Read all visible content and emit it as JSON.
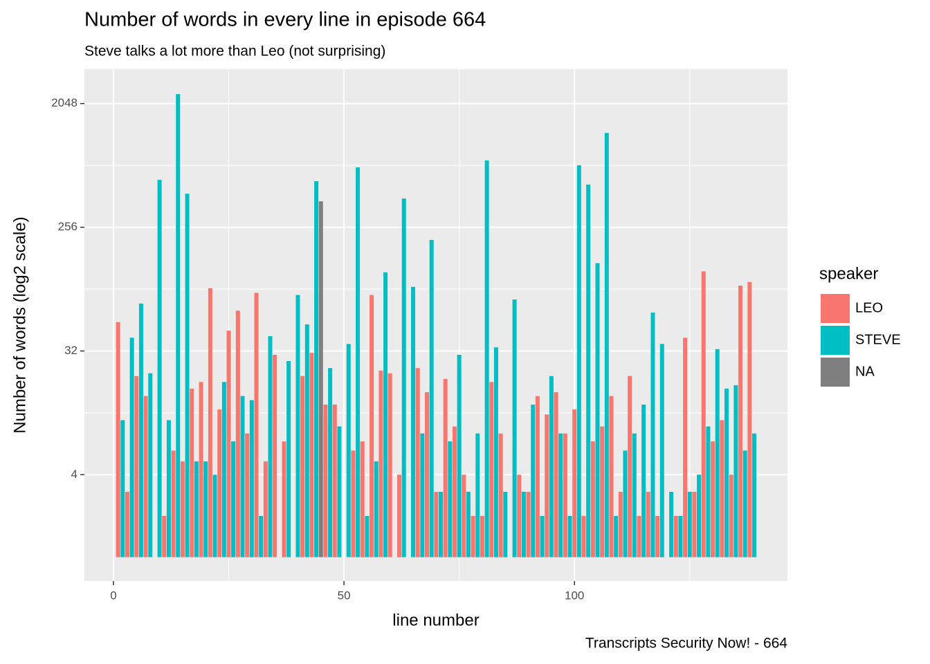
{
  "chart_data": {
    "type": "bar",
    "title": "Number of words in every line in episode 664",
    "subtitle": "Steve talks a lot more than Leo (not surprising)",
    "x_label": "line number",
    "y_label": "Number of words (log2 scale)",
    "caption": "Transcripts Security Now! - 664",
    "legend_title": "speaker",
    "legend_position": "right",
    "log_base": 2,
    "grid": true,
    "xlim": [
      -6.3,
      146.2
    ],
    "xticks": [
      0,
      50,
      100
    ],
    "ylim": [
      0.67,
      3650
    ],
    "yticks": [
      4,
      32,
      256,
      2048
    ],
    "series": [
      {
        "name": "LEO",
        "color": "#f8766d",
        "x": [
          1,
          3,
          5,
          7,
          11,
          13,
          15,
          17,
          19,
          21,
          23,
          25,
          27,
          29,
          31,
          33,
          35,
          37,
          41,
          43,
          46,
          48,
          52,
          54,
          56,
          58,
          60,
          62,
          66,
          68,
          70,
          72,
          74,
          76,
          78,
          80,
          82,
          84,
          88,
          90,
          92,
          94,
          96,
          98,
          100,
          102,
          104,
          106,
          108,
          110,
          112,
          114,
          116,
          118,
          122,
          124,
          126,
          128,
          130,
          132,
          134,
          136,
          138
        ],
        "values": [
          52,
          3,
          21,
          15,
          2,
          6,
          5,
          17,
          19,
          92,
          12,
          45,
          63,
          8,
          85,
          5,
          30,
          7,
          21,
          31,
          13,
          13,
          6,
          7,
          82,
          23,
          22,
          4,
          24,
          16,
          3,
          20,
          9,
          4,
          2,
          2,
          19,
          8,
          4,
          3,
          15,
          11,
          16,
          8,
          12,
          2,
          7,
          9,
          15,
          3,
          21,
          2,
          3,
          2,
          2,
          40,
          3,
          122,
          7,
          10,
          4,
          96,
          102
        ]
      },
      {
        "name": "STEVE",
        "color": "#00bfc4",
        "x": [
          2,
          4,
          6,
          8,
          10,
          12,
          14,
          16,
          18,
          20,
          22,
          24,
          26,
          28,
          30,
          32,
          34,
          38,
          40,
          42,
          44,
          47,
          49,
          51,
          53,
          55,
          57,
          59,
          63,
          65,
          67,
          69,
          71,
          73,
          75,
          77,
          79,
          81,
          83,
          85,
          87,
          89,
          91,
          93,
          95,
          97,
          99,
          101,
          103,
          105,
          107,
          109,
          111,
          113,
          115,
          117,
          119,
          121,
          123,
          125,
          127,
          129,
          131,
          133,
          135,
          137,
          139
        ],
        "values": [
          10,
          40,
          71,
          22,
          568,
          10,
          2400,
          450,
          5,
          5,
          4,
          19,
          7,
          15,
          14,
          2,
          41,
          27,
          82,
          50,
          555,
          24,
          9,
          36,
          700,
          2,
          5,
          120,
          415,
          94,
          8,
          207,
          3,
          7,
          30,
          3,
          8,
          787,
          34,
          3,
          76,
          3,
          13,
          2,
          21,
          8,
          2,
          725,
          525,
          140,
          1250,
          2,
          6,
          8,
          13,
          61,
          36,
          3,
          2,
          3,
          4,
          9,
          33,
          17,
          18,
          6,
          8
        ]
      },
      {
        "name": "NA",
        "color": "#7f7f7f",
        "x": [
          45
        ],
        "values": [
          396
        ]
      }
    ]
  }
}
